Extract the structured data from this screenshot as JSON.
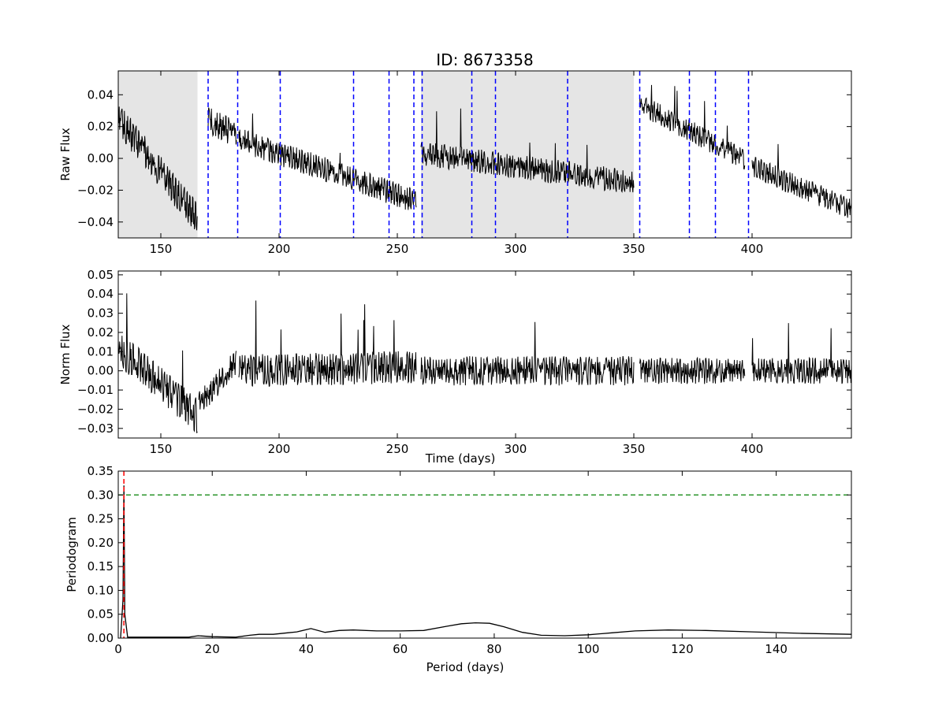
{
  "chart_data": [
    {
      "type": "line",
      "title": "ID: 8673358",
      "xlabel": "",
      "ylabel": "Raw Flux",
      "xlim": [
        132,
        442
      ],
      "ylim": [
        -0.05,
        0.055
      ],
      "xticks": [
        150,
        200,
        250,
        300,
        350,
        400
      ],
      "yticks": [
        -0.04,
        -0.02,
        0.0,
        0.02,
        0.04
      ],
      "ytick_labels": [
        "−0.04",
        "−0.02",
        "0.00",
        "0.02",
        "0.04"
      ],
      "grid": false,
      "shaded_regions": [
        [
          132,
          165.5
        ],
        [
          260,
          350
        ]
      ],
      "quarter_boundaries": [
        170,
        182.5,
        200.5,
        231.5,
        246.5,
        257,
        260.5,
        281.5,
        291.5,
        322,
        352.5,
        373.5,
        384.5,
        398.5
      ],
      "colors": {
        "line": "#000000",
        "boundaries": "#0000ff",
        "shade": "#e5e5e5"
      },
      "segments": [
        {
          "x": [
            132,
            165.5
          ],
          "y_start": 0.025,
          "y_end": -0.038,
          "amplitude": 0.012
        },
        {
          "x": [
            170,
            182
          ],
          "y_start": 0.024,
          "y_end": 0.015,
          "amplitude": 0.01
        },
        {
          "x": [
            183,
            258
          ],
          "y_start": 0.012,
          "y_end": -0.027,
          "amplitude": 0.009
        },
        {
          "x": [
            260,
            350
          ],
          "y_start": 0.003,
          "y_end": -0.015,
          "amplitude": 0.009
        },
        {
          "x": [
            352.5,
            397
          ],
          "y_start": 0.034,
          "y_end": -0.001,
          "amplitude": 0.008
        },
        {
          "x": [
            400,
            442
          ],
          "y_start": -0.005,
          "y_end": -0.032,
          "amplitude": 0.008
        }
      ]
    },
    {
      "type": "line",
      "title": "",
      "xlabel": "Time (days)",
      "ylabel": "Norm Flux",
      "xlim": [
        132,
        442
      ],
      "ylim": [
        -0.035,
        0.052
      ],
      "xticks": [
        150,
        200,
        250,
        300,
        350,
        400
      ],
      "yticks": [
        -0.03,
        -0.02,
        -0.01,
        0.0,
        0.01,
        0.02,
        0.03,
        0.04,
        0.05
      ],
      "ytick_labels": [
        "−0.03",
        "−0.02",
        "−0.01",
        "0.00",
        "0.01",
        "0.02",
        "0.03",
        "0.04",
        "0.05"
      ],
      "grid": false,
      "colors": {
        "line": "#000000"
      },
      "segments": [
        {
          "x": [
            132,
            165.5
          ],
          "y_start": 0.012,
          "y_end": -0.024,
          "amplitude": 0.011
        },
        {
          "x": [
            166,
            182
          ],
          "y_start": -0.018,
          "y_end": 0.005,
          "amplitude": 0.008
        },
        {
          "x": [
            183,
            258
          ],
          "y_start": 0.0,
          "y_end": 0.002,
          "amplitude": 0.01
        },
        {
          "x": [
            260,
            350
          ],
          "y_start": 0.0,
          "y_end": 0.0,
          "amplitude": 0.009
        },
        {
          "x": [
            352.5,
            397
          ],
          "y_start": 0.0,
          "y_end": 0.0,
          "amplitude": 0.008
        },
        {
          "x": [
            400,
            442
          ],
          "y_start": 0.0,
          "y_end": 0.0,
          "amplitude": 0.008
        }
      ]
    },
    {
      "type": "line",
      "title": "",
      "xlabel": "Period (days)",
      "ylabel": "Periodogram",
      "xlim": [
        0,
        156
      ],
      "ylim": [
        0,
        0.35
      ],
      "xticks": [
        0,
        20,
        40,
        60,
        80,
        100,
        120,
        140
      ],
      "yticks": [
        0.0,
        0.05,
        0.1,
        0.15,
        0.2,
        0.25,
        0.3,
        0.35
      ],
      "ytick_labels": [
        "0.00",
        "0.05",
        "0.10",
        "0.15",
        "0.20",
        "0.25",
        "0.30",
        "0.35"
      ],
      "grid": false,
      "threshold": 0.3,
      "peak_period": 1.2,
      "colors": {
        "line": "#000000",
        "threshold": "#008000",
        "peak": "#ff0000"
      },
      "x": [
        0.5,
        1.0,
        1.2,
        1.4,
        2,
        5,
        10,
        15,
        17,
        20,
        25,
        28,
        30,
        33,
        36,
        38,
        41,
        44,
        47,
        50,
        55,
        60,
        65,
        70,
        73,
        76,
        79,
        82,
        86,
        90,
        95,
        100,
        105,
        110,
        117,
        125,
        135,
        145,
        156
      ],
      "y": [
        0.001,
        0.08,
        0.32,
        0.05,
        0.002,
        0.002,
        0.002,
        0.002,
        0.005,
        0.003,
        0.002,
        0.006,
        0.008,
        0.008,
        0.011,
        0.013,
        0.02,
        0.012,
        0.016,
        0.017,
        0.015,
        0.015,
        0.016,
        0.025,
        0.03,
        0.032,
        0.031,
        0.024,
        0.012,
        0.006,
        0.005,
        0.007,
        0.011,
        0.015,
        0.017,
        0.016,
        0.013,
        0.01,
        0.008
      ]
    }
  ]
}
